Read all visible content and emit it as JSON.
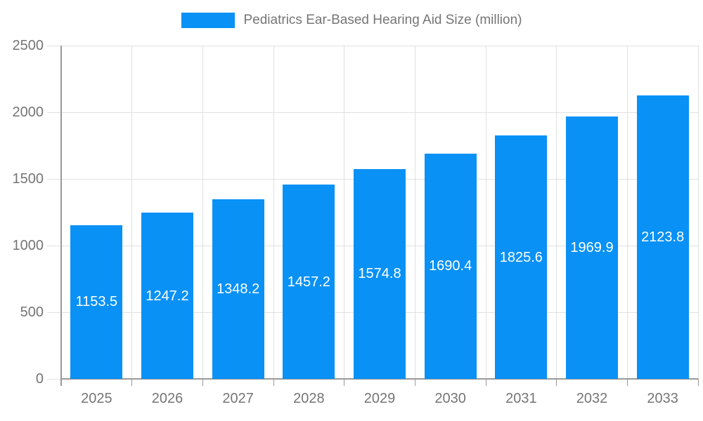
{
  "chart_data": {
    "type": "bar",
    "title": "Pediatrics Ear-Based Hearing Aid Size (million)",
    "legend_entries": [
      "Pediatrics Ear-Based Hearing Aid Size (million)"
    ],
    "legend_position": "top-center",
    "categories": [
      "2025",
      "2026",
      "2027",
      "2028",
      "2029",
      "2030",
      "2031",
      "2032",
      "2033"
    ],
    "values": [
      1153.5,
      1247.2,
      1348.2,
      1457.2,
      1574.8,
      1690.4,
      1825.6,
      1969.9,
      2123.8
    ],
    "value_labels": [
      "1153.5",
      "1247.2",
      "1348.2",
      "1457.2",
      "1574.8",
      "1690.4",
      "1825.6",
      "1969.9",
      "2123.8"
    ],
    "xlabel": "",
    "ylabel": "",
    "ylim": [
      0,
      2500
    ],
    "yticks": [
      0,
      500,
      1000,
      1500,
      2000,
      2500
    ],
    "grid": true,
    "colors": {
      "bar": "#0991f5",
      "grid": "#e0e0e0",
      "axis": "#999999",
      "tick_text": "#757575",
      "bar_label_text": "#ffffff",
      "background": "#ffffff"
    }
  }
}
